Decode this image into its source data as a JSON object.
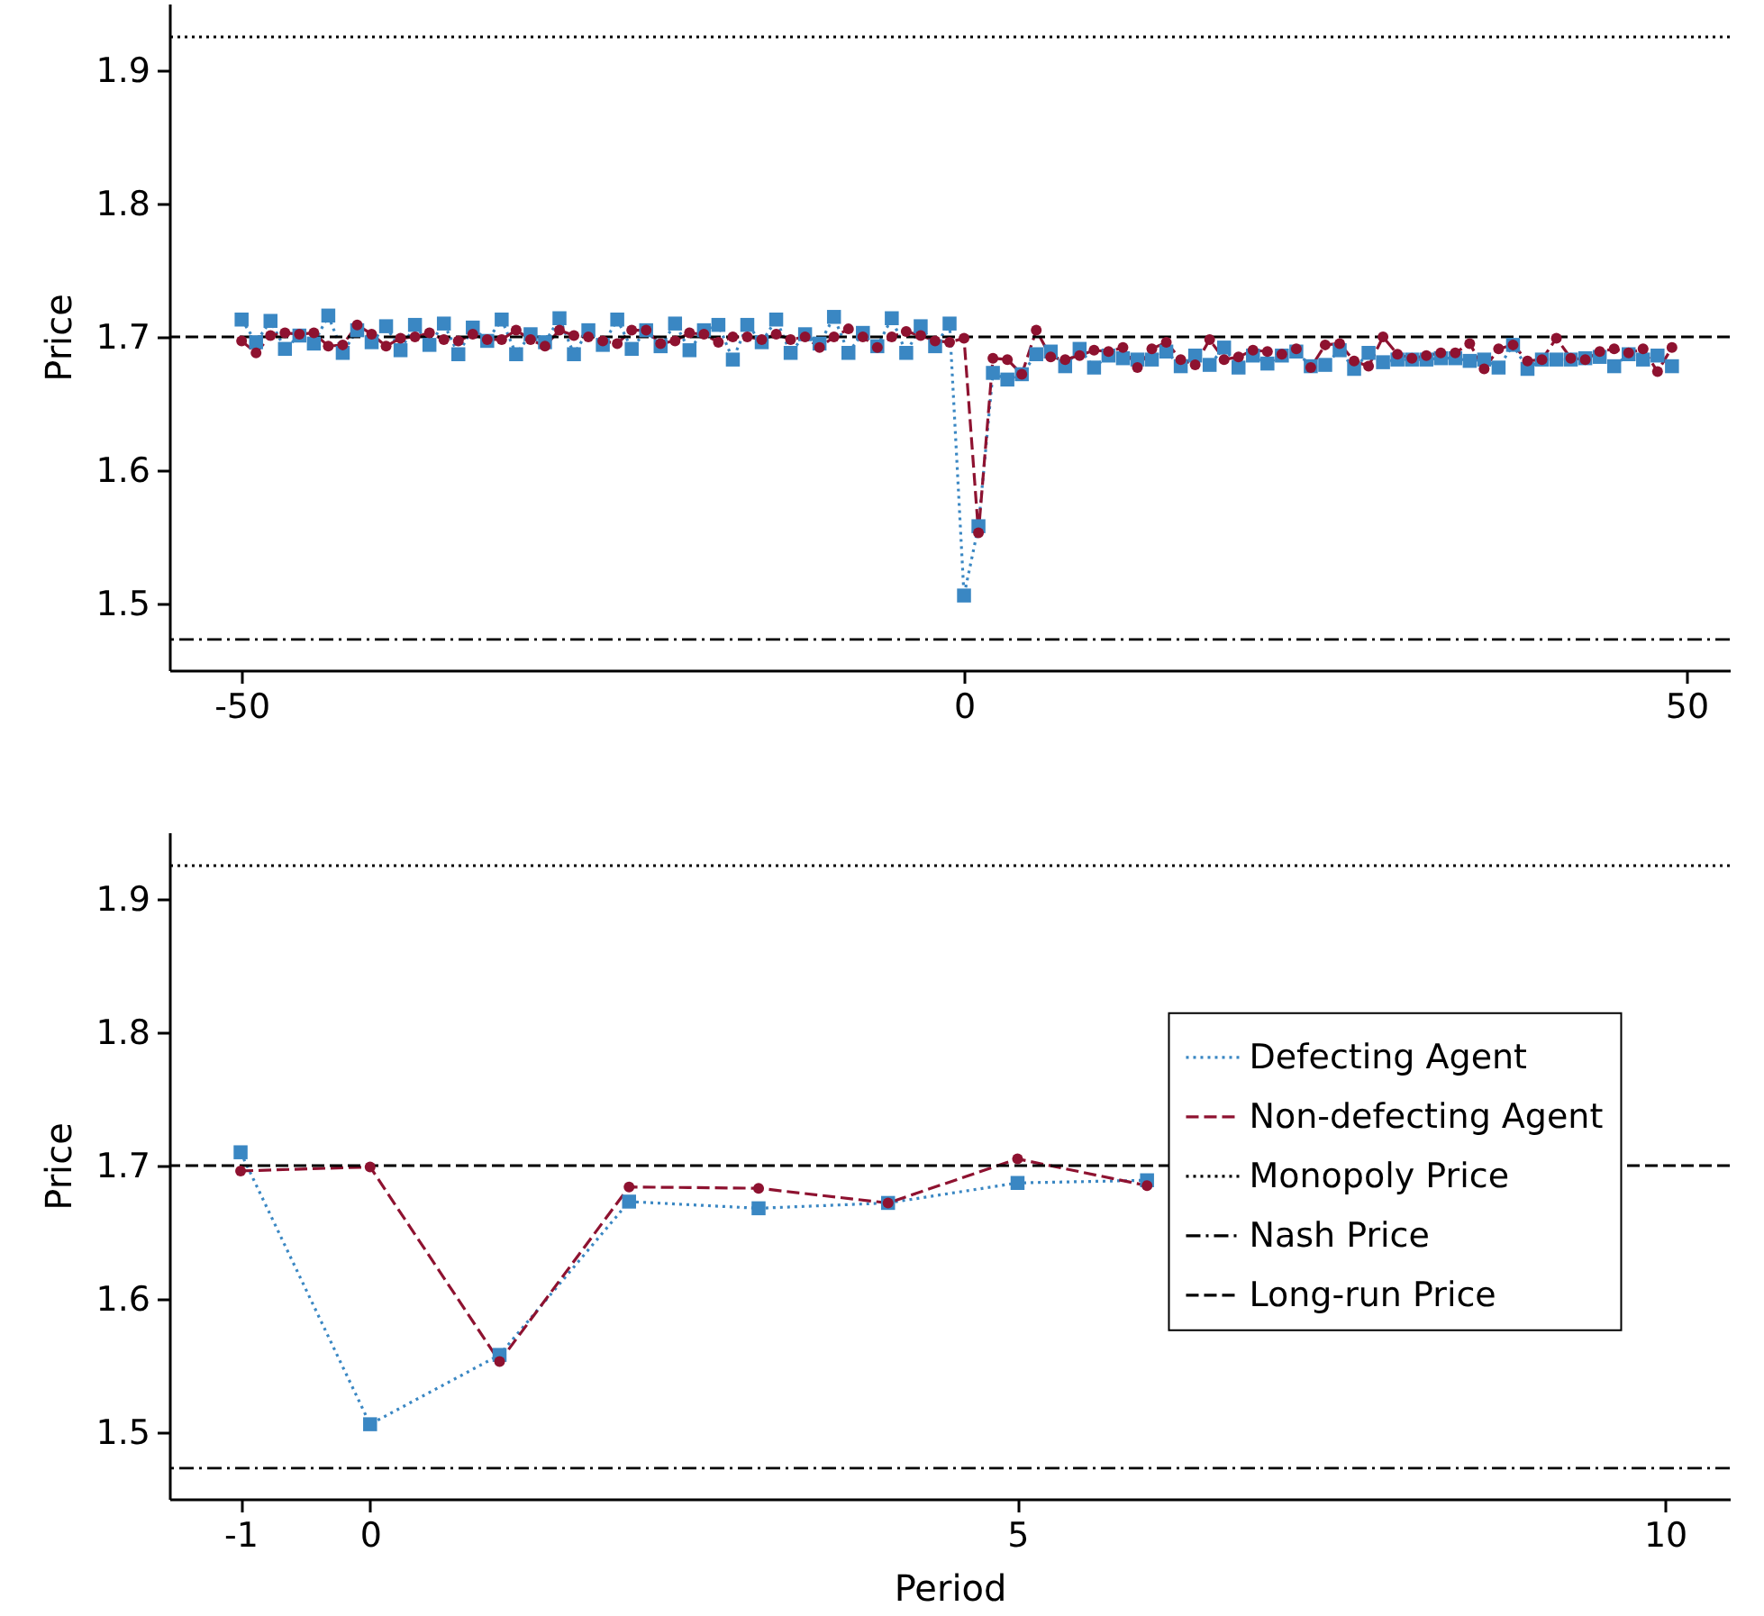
{
  "chart_data": [
    {
      "type": "line",
      "ylabel": "Price",
      "xlim": [
        -55,
        53
      ],
      "xticks": [
        -50,
        0,
        50
      ],
      "ylim": [
        1.45,
        1.95
      ],
      "yticks": [
        1.5,
        1.6,
        1.7,
        1.8,
        1.9
      ],
      "grid": false,
      "legend": false,
      "x": [
        -50,
        -49,
        -48,
        -47,
        -46,
        -45,
        -44,
        -43,
        -42,
        -41,
        -40,
        -39,
        -38,
        -37,
        -36,
        -35,
        -34,
        -33,
        -32,
        -31,
        -30,
        -29,
        -28,
        -27,
        -26,
        -25,
        -24,
        -23,
        -22,
        -21,
        -20,
        -19,
        -18,
        -17,
        -16,
        -15,
        -14,
        -13,
        -12,
        -11,
        -10,
        -9,
        -8,
        -7,
        -6,
        -5,
        -4,
        -3,
        -2,
        -1,
        0,
        1,
        2,
        3,
        4,
        5,
        6,
        7,
        8,
        9,
        10,
        11,
        12,
        13,
        14,
        15,
        16,
        17,
        18,
        19,
        20,
        21,
        22,
        23,
        24,
        25,
        26,
        27,
        28,
        29,
        30,
        31,
        32,
        33,
        34,
        35,
        36,
        37,
        38,
        39,
        40,
        41,
        42,
        43,
        44,
        45,
        46,
        47,
        48,
        49
      ],
      "series": [
        {
          "color": "#3a87c3",
          "marker": "square",
          "line_style": "dotted",
          "values": [
            1.713,
            1.696,
            1.712,
            1.691,
            1.701,
            1.695,
            1.716,
            1.688,
            1.705,
            1.696,
            1.708,
            1.69,
            1.709,
            1.694,
            1.71,
            1.687,
            1.707,
            1.697,
            1.713,
            1.687,
            1.702,
            1.696,
            1.714,
            1.687,
            1.705,
            1.694,
            1.713,
            1.691,
            1.705,
            1.693,
            1.71,
            1.69,
            1.705,
            1.709,
            1.683,
            1.709,
            1.696,
            1.713,
            1.688,
            1.702,
            1.695,
            1.715,
            1.688,
            1.703,
            1.693,
            1.714,
            1.688,
            1.708,
            1.693,
            1.71,
            1.506,
            1.558,
            1.673,
            1.668,
            1.672,
            1.687,
            1.689,
            1.678,
            1.691,
            1.677,
            1.686,
            1.684,
            1.683,
            1.683,
            1.689,
            1.678,
            1.686,
            1.679,
            1.692,
            1.677,
            1.686,
            1.68,
            1.686,
            1.689,
            1.678,
            1.679,
            1.69,
            1.676,
            1.688,
            1.681,
            1.683,
            1.683,
            1.683,
            1.684,
            1.684,
            1.682,
            1.683,
            1.677,
            1.694,
            1.676,
            1.683,
            1.683,
            1.683,
            1.684,
            1.685,
            1.678,
            1.687,
            1.683,
            1.686,
            1.678
          ]
        },
        {
          "color": "#8e1230",
          "marker": "circle",
          "line_style": "dashed",
          "values": [
            1.697,
            1.688,
            1.701,
            1.703,
            1.702,
            1.703,
            1.693,
            1.694,
            1.709,
            1.702,
            1.693,
            1.699,
            1.7,
            1.703,
            1.698,
            1.697,
            1.702,
            1.698,
            1.698,
            1.705,
            1.698,
            1.693,
            1.705,
            1.701,
            1.7,
            1.697,
            1.695,
            1.705,
            1.705,
            1.695,
            1.697,
            1.703,
            1.702,
            1.696,
            1.7,
            1.7,
            1.698,
            1.702,
            1.698,
            1.7,
            1.692,
            1.7,
            1.706,
            1.7,
            1.692,
            1.7,
            1.704,
            1.701,
            1.697,
            1.696,
            1.699,
            1.553,
            1.684,
            1.683,
            1.672,
            1.705,
            1.685,
            1.683,
            1.686,
            1.69,
            1.689,
            1.692,
            1.677,
            1.691,
            1.696,
            1.683,
            1.679,
            1.698,
            1.683,
            1.685,
            1.69,
            1.689,
            1.687,
            1.691,
            1.677,
            1.694,
            1.695,
            1.682,
            1.678,
            1.7,
            1.687,
            1.684,
            1.686,
            1.688,
            1.688,
            1.695,
            1.676,
            1.691,
            1.694,
            1.682,
            1.683,
            1.699,
            1.684,
            1.683,
            1.689,
            1.691,
            1.688,
            1.691,
            1.674,
            1.692
          ]
        }
      ],
      "ref_lines": [
        {
          "axis": "y",
          "value": 1.925,
          "color": "#000000",
          "line_style": "dotted"
        },
        {
          "axis": "y",
          "value": 1.473,
          "color": "#000000",
          "line_style": "dashdot"
        },
        {
          "axis": "y",
          "value": 1.7,
          "color": "#000000",
          "line_style": "dashed"
        }
      ]
    },
    {
      "type": "line",
      "xlabel": "Period",
      "ylabel": "Price",
      "xlim": [
        -1.55,
        10.5
      ],
      "xticks": [
        -1,
        0,
        5,
        10
      ],
      "ylim": [
        1.45,
        1.95
      ],
      "yticks": [
        1.5,
        1.6,
        1.7,
        1.8,
        1.9
      ],
      "grid": false,
      "legend": "right",
      "x": [
        -1,
        0,
        1,
        2,
        3,
        4,
        5,
        6
      ],
      "series": [
        {
          "name": "Defecting Agent",
          "color": "#3a87c3",
          "marker": "square",
          "line_style": "dotted",
          "values": [
            1.71,
            1.506,
            1.558,
            1.673,
            1.668,
            1.672,
            1.687,
            1.689
          ]
        },
        {
          "name": "Non-defecting Agent",
          "color": "#8e1230",
          "marker": "circle",
          "line_style": "dashed",
          "values": [
            1.696,
            1.699,
            1.553,
            1.684,
            1.683,
            1.672,
            1.705,
            1.685
          ]
        }
      ],
      "ref_lines": [
        {
          "axis": "y",
          "value": 1.925,
          "label": "Monopoly Price",
          "color": "#000000",
          "line_style": "dotted"
        },
        {
          "axis": "y",
          "value": 1.473,
          "label": "Nash Price",
          "color": "#000000",
          "line_style": "dashdot"
        },
        {
          "axis": "y",
          "value": 1.7,
          "label": "Long-run Price",
          "color": "#000000",
          "line_style": "dashed"
        }
      ]
    }
  ]
}
